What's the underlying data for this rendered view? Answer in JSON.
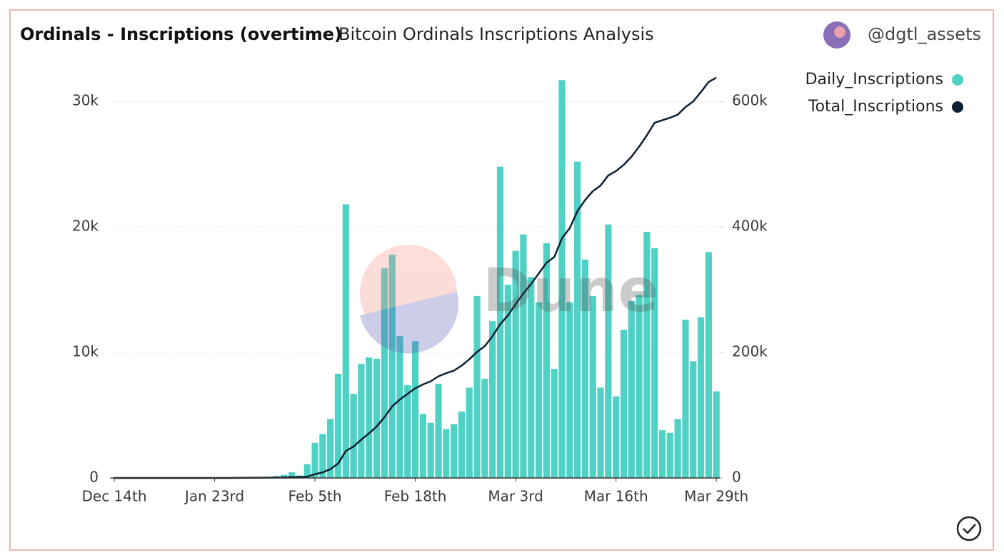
{
  "chart_data": {
    "type": "bar_line",
    "title": "Ordinals - Inscriptions (overtime)",
    "subtitle": "Bitcoin Ordinals Inscriptions Analysis",
    "author": "@dgtl_assets",
    "watermark": "Dune",
    "categories": [
      "Dec 14th",
      null,
      null,
      null,
      null,
      null,
      null,
      null,
      null,
      null,
      null,
      null,
      null,
      "Jan 23rd",
      null,
      null,
      null,
      null,
      null,
      null,
      null,
      null,
      null,
      null,
      null,
      null,
      "Feb 5th",
      null,
      null,
      null,
      null,
      null,
      null,
      null,
      null,
      null,
      null,
      null,
      null,
      "Feb 18th",
      null,
      null,
      null,
      null,
      null,
      null,
      null,
      null,
      null,
      null,
      null,
      null,
      "Mar 3rd",
      null,
      null,
      null,
      null,
      null,
      null,
      null,
      null,
      null,
      null,
      null,
      null,
      "Mar 16th",
      null,
      null,
      null,
      null,
      null,
      null,
      null,
      null,
      null,
      null,
      null,
      null,
      "Mar 29th"
    ],
    "series": [
      {
        "name": "Daily_Inscriptions",
        "color": "#4fd1c5",
        "values": [
          0,
          0,
          0,
          0,
          0,
          0,
          0,
          0,
          0,
          0,
          0,
          0,
          0,
          0,
          0,
          0,
          20,
          30,
          50,
          60,
          100,
          150,
          250,
          450,
          200,
          1100,
          2800,
          3500,
          4700,
          8300,
          21800,
          6700,
          9100,
          9600,
          9500,
          16700,
          17800,
          11300,
          7400,
          10900,
          5100,
          4400,
          7500,
          3900,
          4300,
          5300,
          7200,
          14500,
          7900,
          12500,
          24800,
          15400,
          18100,
          19400,
          16000,
          14000,
          18700,
          8700,
          31700,
          14000,
          25200,
          17400,
          14500,
          7200,
          20200,
          6500,
          11800,
          14100,
          14600,
          19600,
          18300,
          3800,
          3600,
          4700,
          12600,
          9300,
          12800,
          18000,
          6900
        ]
      },
      {
        "name": "Total_Inscriptions",
        "color": "#0c1f33",
        "axis": "y2",
        "values": [
          0,
          0,
          0,
          0,
          0,
          0,
          0,
          0,
          0,
          0,
          0,
          0,
          0,
          0,
          0,
          0,
          100,
          200,
          300,
          400,
          500,
          700,
          900,
          1400,
          1600,
          2000,
          6000,
          9000,
          14000,
          23000,
          43000,
          50000,
          61000,
          71000,
          82000,
          97000,
          114000,
          125000,
          134000,
          143000,
          149000,
          154000,
          162000,
          167000,
          171000,
          179000,
          189000,
          201000,
          210000,
          226000,
          245000,
          259000,
          277000,
          294000,
          309000,
          326000,
          343000,
          352000,
          382000,
          398000,
          425000,
          443000,
          457000,
          466000,
          482000,
          489000,
          499000,
          512000,
          528000,
          546000,
          566000,
          570000,
          574000,
          579000,
          591000,
          600000,
          615000,
          631000,
          638000
        ]
      }
    ],
    "ylim": [
      0,
      32000
    ],
    "yticks": [
      0,
      {
        "value": 10000,
        "label": "10k"
      },
      {
        "value": 20000,
        "label": "20k"
      },
      {
        "value": 30000,
        "label": "30k"
      }
    ],
    "y2lim": [
      0,
      640000
    ],
    "y2ticks": [
      0,
      {
        "value": 200000,
        "label": "200k"
      },
      {
        "value": 400000,
        "label": "400k"
      },
      {
        "value": 600000,
        "label": "600k"
      }
    ],
    "grid": true,
    "legend": "top-right"
  }
}
